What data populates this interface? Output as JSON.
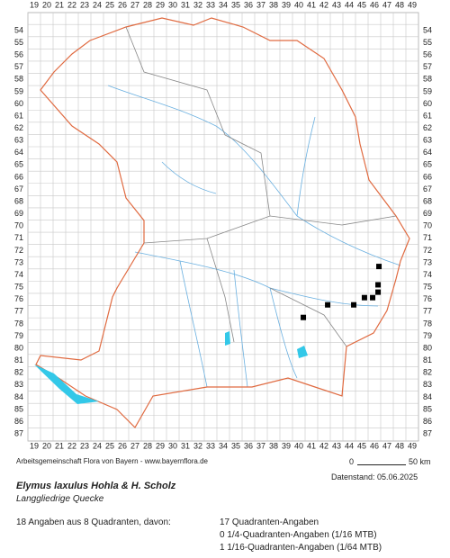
{
  "map": {
    "columns": [
      19,
      20,
      21,
      22,
      23,
      24,
      25,
      26,
      27,
      28,
      29,
      30,
      31,
      32,
      33,
      34,
      35,
      36,
      37,
      38,
      39,
      40,
      41,
      42,
      43,
      44,
      45,
      46,
      47,
      48,
      49
    ],
    "rows": [
      54,
      55,
      56,
      57,
      58,
      59,
      60,
      61,
      62,
      63,
      64,
      65,
      66,
      67,
      68,
      69,
      70,
      71,
      72,
      73,
      74,
      75,
      76,
      77,
      78,
      79,
      80,
      81,
      82,
      83,
      84,
      85,
      86,
      87
    ],
    "points": [
      [
        46.86,
        73.8
      ],
      [
        46.79,
        75.3
      ],
      [
        46.79,
        75.9
      ],
      [
        46.36,
        76.35
      ],
      [
        45.71,
        76.35
      ],
      [
        44.86,
        76.94
      ],
      [
        42.79,
        76.94
      ],
      [
        40.86,
        77.97
      ]
    ],
    "point_color": "#000000"
  },
  "footer": {
    "credit": "Arbeitsgemeinschaft Flora von Bayern - www.bayernflora.de",
    "scale_start": "0",
    "scale_end": "50 km",
    "date": "Datenstand: 05.06.2025",
    "species": "Elymus laxulus Hohla & H. Scholz",
    "common_name": "Langgliedrige Quecke",
    "summary": "18 Angaben aus 8 Quadranten, davon:",
    "details": [
      "17 Quadranten-Angaben",
      "0 1/4-Quadranten-Angaben (1/16 MTB)",
      "1 1/16-Quadranten-Angaben (1/64 MTB)"
    ]
  }
}
